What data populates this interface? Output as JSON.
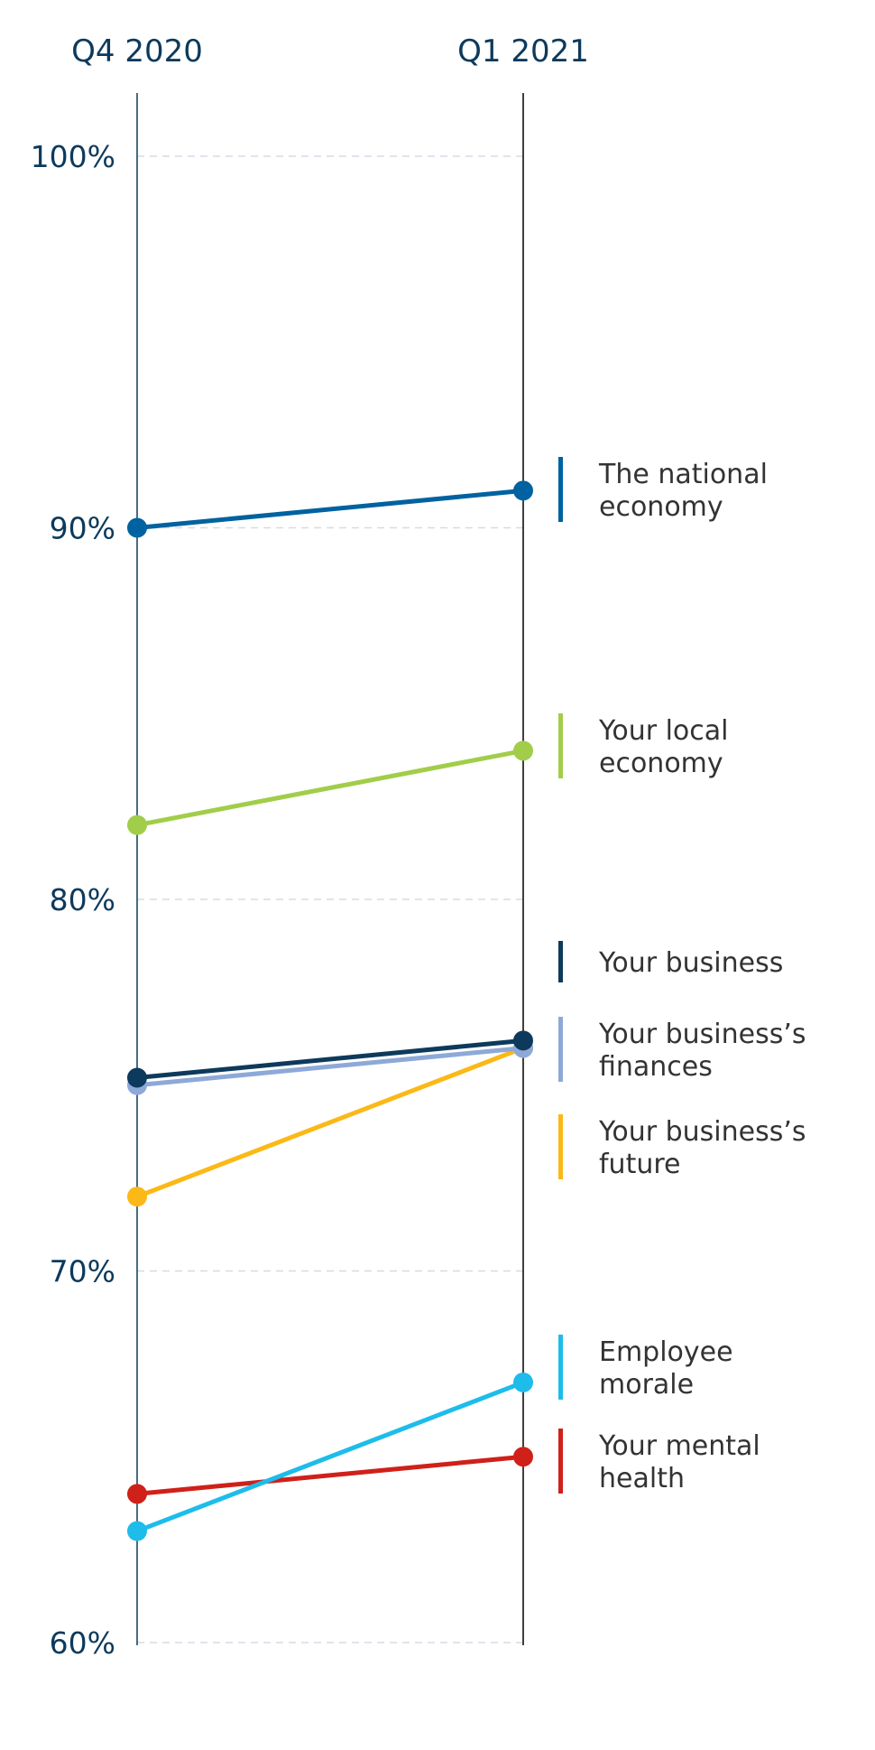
{
  "chart_data": {
    "type": "line",
    "title": "",
    "categories": [
      "Q4 2020",
      "Q1 2021"
    ],
    "ylim": [
      60,
      100
    ],
    "yticks": [
      {
        "value": 100,
        "label": "100%"
      },
      {
        "value": 90,
        "label": "90%"
      },
      {
        "value": 80,
        "label": "80%"
      },
      {
        "value": 70,
        "label": "70%"
      },
      {
        "value": 60,
        "label": "60%"
      }
    ],
    "grid": true,
    "legend": "right",
    "series": [
      {
        "name": "The national economy",
        "lines": [
          "The national",
          "economy"
        ],
        "values": [
          90,
          91
        ],
        "color": "#0062a0"
      },
      {
        "name": "Your local economy",
        "lines": [
          "Your local",
          "economy"
        ],
        "values": [
          82,
          84
        ],
        "color": "#a2cd4a"
      },
      {
        "name": "Your business",
        "lines": [
          "Your business"
        ],
        "values": [
          75.2,
          76.2
        ],
        "color": "#0d3a5c"
      },
      {
        "name": "Your business’s finances",
        "lines": [
          "Your business’s",
          "finances"
        ],
        "values": [
          75,
          76
        ],
        "color": "#8ea9d8"
      },
      {
        "name": "Your business’s future",
        "lines": [
          "Your business’s",
          "future"
        ],
        "values": [
          72,
          76
        ],
        "color": "#fbb817"
      },
      {
        "name": "Employee morale",
        "lines": [
          "Employee",
          "morale"
        ],
        "values": [
          63,
          67
        ],
        "color": "#1ebcea"
      },
      {
        "name": "Your mental health",
        "lines": [
          "Your mental",
          "health"
        ],
        "values": [
          64,
          65
        ],
        "color": "#d0201a"
      }
    ]
  }
}
